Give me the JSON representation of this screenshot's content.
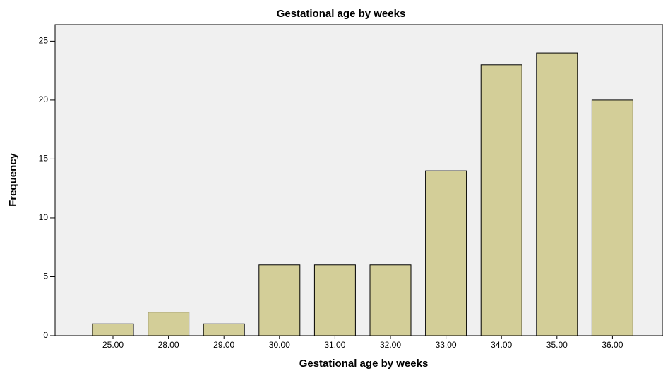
{
  "chart_data": {
    "type": "bar",
    "title": "Gestational age by weeks",
    "x_label": "Gestational age by weeks",
    "y_label": "Frequency",
    "categories": [
      "25.00",
      "28.00",
      "29.00",
      "30.00",
      "31.00",
      "32.00",
      "33.00",
      "34.00",
      "35.00",
      "36.00"
    ],
    "values": [
      1,
      2,
      1,
      6,
      6,
      6,
      14,
      23,
      24,
      20
    ],
    "color": "#d3ce98",
    "ylim": [
      0,
      26.4
    ],
    "yticks": [
      0,
      5,
      10,
      15,
      20,
      25
    ],
    "grid": false
  }
}
